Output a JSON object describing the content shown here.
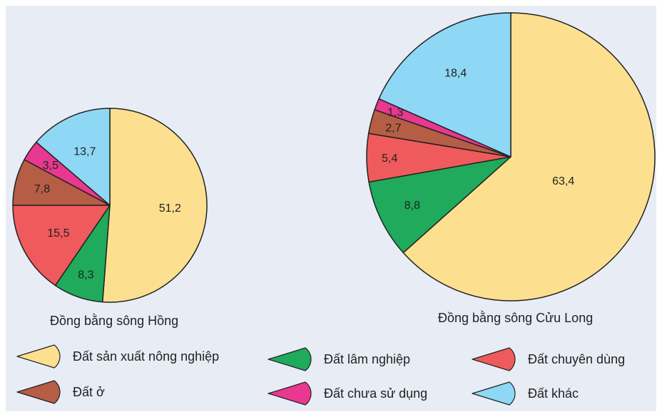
{
  "chart_data": [
    {
      "type": "pie",
      "title": "Đồng bằng sông Hồng",
      "categories": [
        "Đất sản xuất nông nghiệp",
        "Đất lâm nghiệp",
        "Đất chuyên dùng",
        "Đất ở",
        "Đất chưa sử dụng",
        "Đất khác"
      ],
      "values": [
        51.2,
        8.3,
        15.5,
        7.8,
        3.5,
        13.7
      ],
      "labels": [
        "51,2",
        "8,3",
        "15,5",
        "7,8",
        "3,5",
        "13,7"
      ]
    },
    {
      "type": "pie",
      "title": "Đồng bằng sông Cửu Long",
      "categories": [
        "Đất sản xuất nông nghiệp",
        "Đất lâm nghiệp",
        "Đất chuyên dùng",
        "Đất ở",
        "Đất chưa sử dụng",
        "Đất khác"
      ],
      "values": [
        63.4,
        8.8,
        5.4,
        2.7,
        1.3,
        18.4
      ],
      "labels": [
        "63,4",
        "8,8",
        "5,4",
        "2,7",
        "1,3",
        "18,4"
      ]
    }
  ],
  "legend": [
    {
      "label": "Đất sản xuất nông nghiệp",
      "color": "#fde08f"
    },
    {
      "label": "Đất lâm nghiệp",
      "color": "#1faa5c"
    },
    {
      "label": "Đất chuyên dùng",
      "color": "#ef5a5c"
    },
    {
      "label": "Đất ở",
      "color": "#b65d45"
    },
    {
      "label": "Đất chưa sử dụng",
      "color": "#e8388f"
    },
    {
      "label": "Đất khác",
      "color": "#8fd8f5"
    }
  ]
}
